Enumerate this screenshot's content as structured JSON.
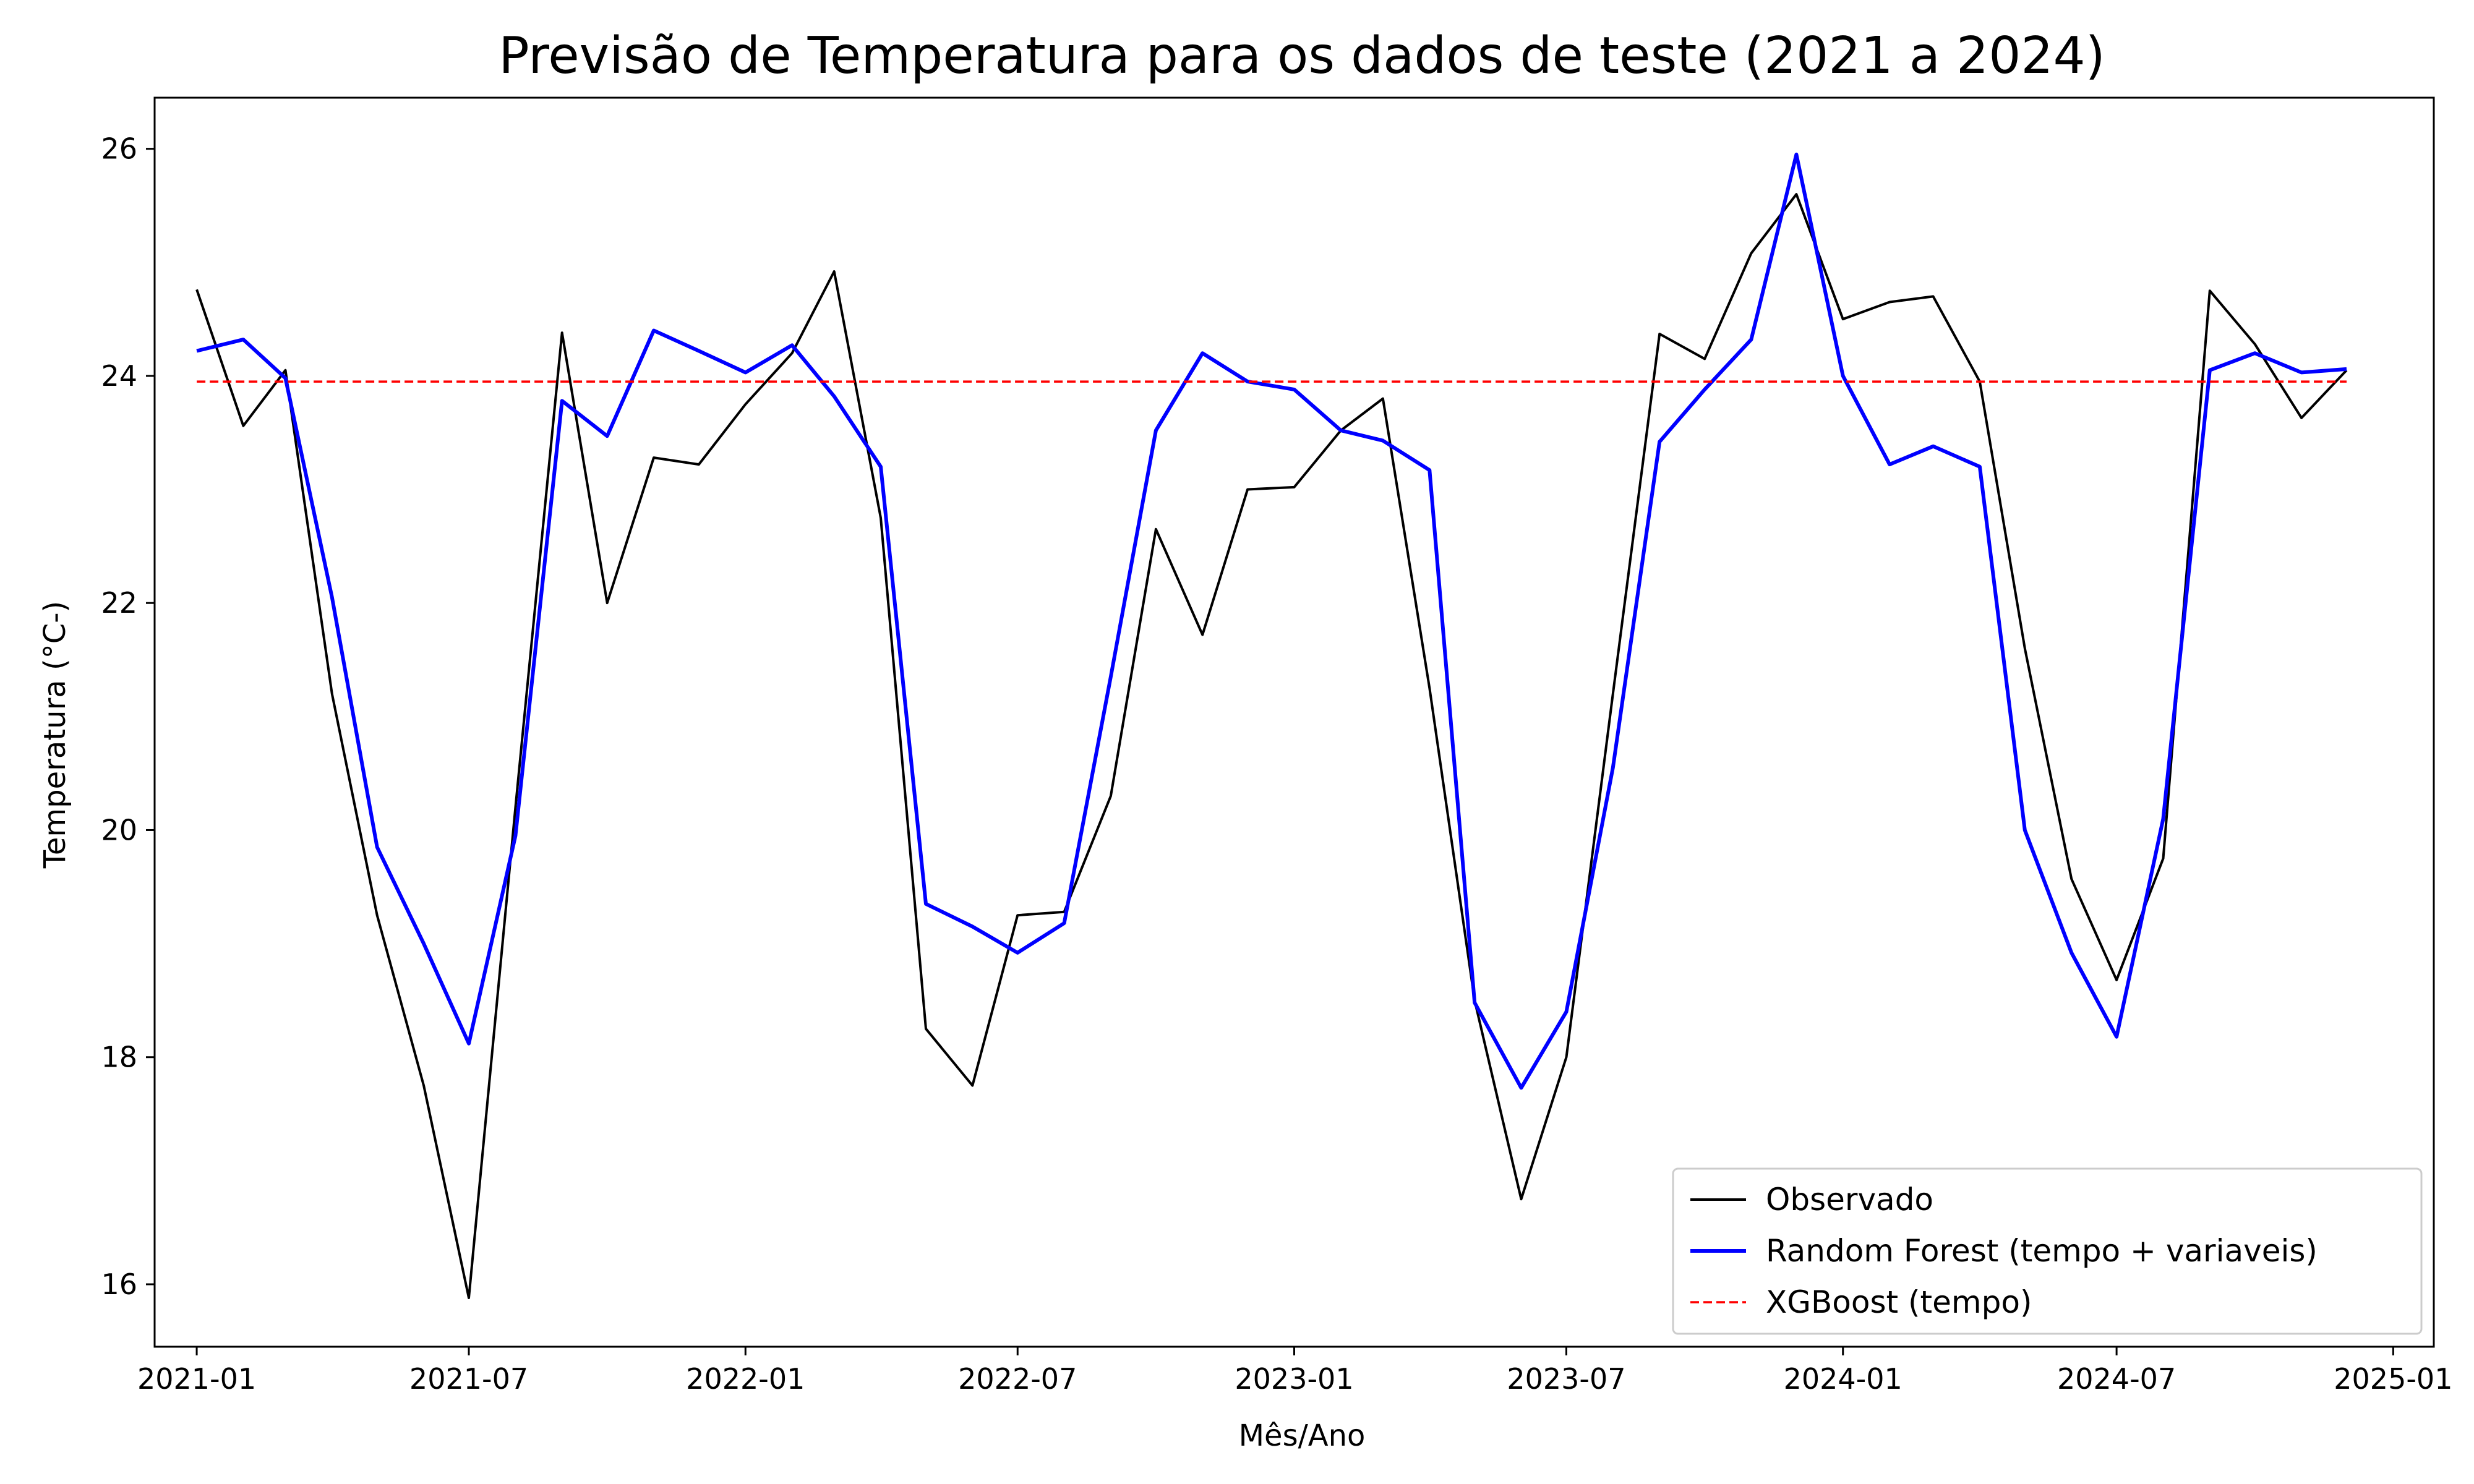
{
  "chart_data": {
    "type": "line",
    "title": "Previsão de Temperatura para os dados de teste (2021 a 2024)",
    "xlabel": "Mês/Ano",
    "ylabel": "Temperatura (°C-)",
    "xlim": [
      "2020-12-04",
      "2025-01-28"
    ],
    "ylim": [
      15.45,
      26.45
    ],
    "yticks": [
      16,
      18,
      20,
      22,
      24,
      26
    ],
    "xticks": [
      "2021-01",
      "2021-07",
      "2022-01",
      "2022-07",
      "2023-01",
      "2023-07",
      "2024-01",
      "2024-07",
      "2025-01"
    ],
    "grid": false,
    "legend_position": "lower right",
    "x": [
      "2021-01-01",
      "2021-02-01",
      "2021-03-01",
      "2021-04-01",
      "2021-05-01",
      "2021-06-01",
      "2021-07-01",
      "2021-08-01",
      "2021-09-01",
      "2021-10-01",
      "2021-11-01",
      "2021-12-01",
      "2022-01-01",
      "2022-02-01",
      "2022-03-01",
      "2022-04-01",
      "2022-05-01",
      "2022-06-01",
      "2022-07-01",
      "2022-08-01",
      "2022-09-01",
      "2022-10-01",
      "2022-11-01",
      "2022-12-01",
      "2023-01-01",
      "2023-02-01",
      "2023-03-01",
      "2023-04-01",
      "2023-05-01",
      "2023-06-01",
      "2023-07-01",
      "2023-08-01",
      "2023-09-01",
      "2023-10-01",
      "2023-11-01",
      "2023-12-01",
      "2024-01-01",
      "2024-02-01",
      "2024-03-01",
      "2024-04-01",
      "2024-05-01",
      "2024-06-01",
      "2024-07-01",
      "2024-08-01",
      "2024-09-01",
      "2024-10-01",
      "2024-11-01",
      "2024-12-01"
    ],
    "series": [
      {
        "name": "Observado",
        "color": "#000000",
        "style": "solid",
        "values": [
          24.76,
          23.56,
          24.05,
          21.2,
          19.25,
          17.75,
          15.88,
          20.2,
          24.38,
          22.0,
          23.28,
          23.22,
          23.75,
          24.2,
          24.92,
          22.75,
          18.25,
          17.75,
          19.25,
          19.28,
          20.3,
          22.65,
          21.72,
          23.0,
          23.02,
          23.52,
          23.8,
          21.25,
          18.5,
          16.75,
          18.0,
          21.2,
          24.37,
          24.15,
          25.08,
          25.6,
          24.5,
          24.65,
          24.7,
          23.95,
          21.6,
          19.57,
          18.68,
          19.75,
          24.75,
          24.28,
          23.63,
          24.05
        ]
      },
      {
        "name": "Random Forest (tempo + variaveis)",
        "color": "#0000ff",
        "style": "solid",
        "values": [
          24.22,
          24.32,
          23.98,
          22.05,
          19.85,
          19.0,
          18.12,
          19.95,
          23.78,
          23.47,
          24.4,
          24.22,
          24.03,
          24.27,
          23.82,
          23.2,
          19.35,
          19.15,
          18.92,
          19.18,
          21.35,
          23.52,
          24.2,
          23.95,
          23.88,
          23.52,
          23.43,
          23.17,
          18.48,
          17.73,
          18.4,
          20.55,
          23.42,
          23.88,
          24.32,
          25.95,
          24.0,
          23.22,
          23.38,
          23.2,
          20.0,
          18.92,
          18.18,
          20.1,
          24.05,
          24.2,
          24.03,
          24.06
        ]
      },
      {
        "name": "XGBoost (tempo)",
        "color": "#ff0000",
        "style": "dashed",
        "values": [
          23.95,
          23.95,
          23.95,
          23.95,
          23.95,
          23.95,
          23.95,
          23.95,
          23.95,
          23.95,
          23.95,
          23.95,
          23.95,
          23.95,
          23.95,
          23.95,
          23.95,
          23.95,
          23.95,
          23.95,
          23.95,
          23.95,
          23.95,
          23.95,
          23.95,
          23.95,
          23.95,
          23.95,
          23.95,
          23.95,
          23.95,
          23.95,
          23.95,
          23.95,
          23.95,
          23.95,
          23.95,
          23.95,
          23.95,
          23.95,
          23.95,
          23.95,
          23.95,
          23.95,
          23.95,
          23.95,
          23.95,
          23.95
        ]
      }
    ]
  }
}
